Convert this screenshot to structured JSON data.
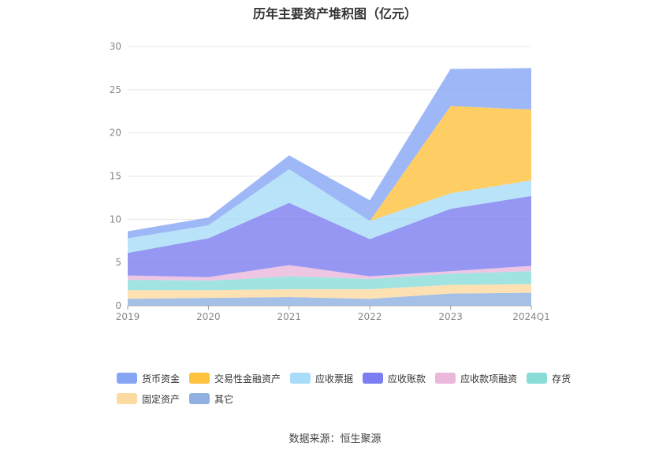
{
  "chart_data": {
    "type": "area",
    "stacked": true,
    "title": "历年主要资产堆积图（亿元）",
    "source": "数据来源：恒生聚源",
    "x": [
      "2019",
      "2020",
      "2021",
      "2022",
      "2023",
      "2024Q1"
    ],
    "ylim": [
      0,
      30
    ],
    "yticks": [
      "0",
      "5",
      "10",
      "15",
      "20",
      "25",
      "30"
    ],
    "grid": true,
    "legend_position": "bottom",
    "series": [
      {
        "name": "其它",
        "color": "#8fb0e0",
        "values": [
          0.8,
          0.9,
          1.0,
          0.8,
          1.4,
          1.5
        ]
      },
      {
        "name": "固定资产",
        "color": "#fddaa0",
        "values": [
          1.0,
          0.9,
          0.9,
          1.1,
          1.0,
          1.0
        ]
      },
      {
        "name": "存货",
        "color": "#89dcd8",
        "values": [
          1.2,
          1.1,
          1.5,
          1.2,
          1.3,
          1.5
        ]
      },
      {
        "name": "应收款项融资",
        "color": "#eab8dc",
        "values": [
          0.5,
          0.4,
          1.3,
          0.3,
          0.3,
          0.6
        ]
      },
      {
        "name": "应收账款",
        "color": "#7b7df0",
        "values": [
          2.6,
          4.5,
          7.2,
          4.3,
          7.2,
          8.1
        ]
      },
      {
        "name": "应收票据",
        "color": "#a8dcf8",
        "values": [
          1.7,
          1.5,
          3.9,
          2.1,
          1.8,
          1.8
        ]
      },
      {
        "name": "交易性金融资产",
        "color": "#fec23e",
        "values": [
          0.0,
          0.0,
          0.0,
          0.0,
          10.1,
          8.2
        ]
      },
      {
        "name": "货币资金",
        "color": "#86a6f5",
        "values": [
          0.8,
          0.9,
          1.6,
          2.4,
          4.3,
          4.8
        ]
      }
    ],
    "legend_order": [
      "货币资金",
      "交易性金融资产",
      "应收票据",
      "应收账款",
      "应收款项融资",
      "存货",
      "固定资产",
      "其它"
    ]
  }
}
